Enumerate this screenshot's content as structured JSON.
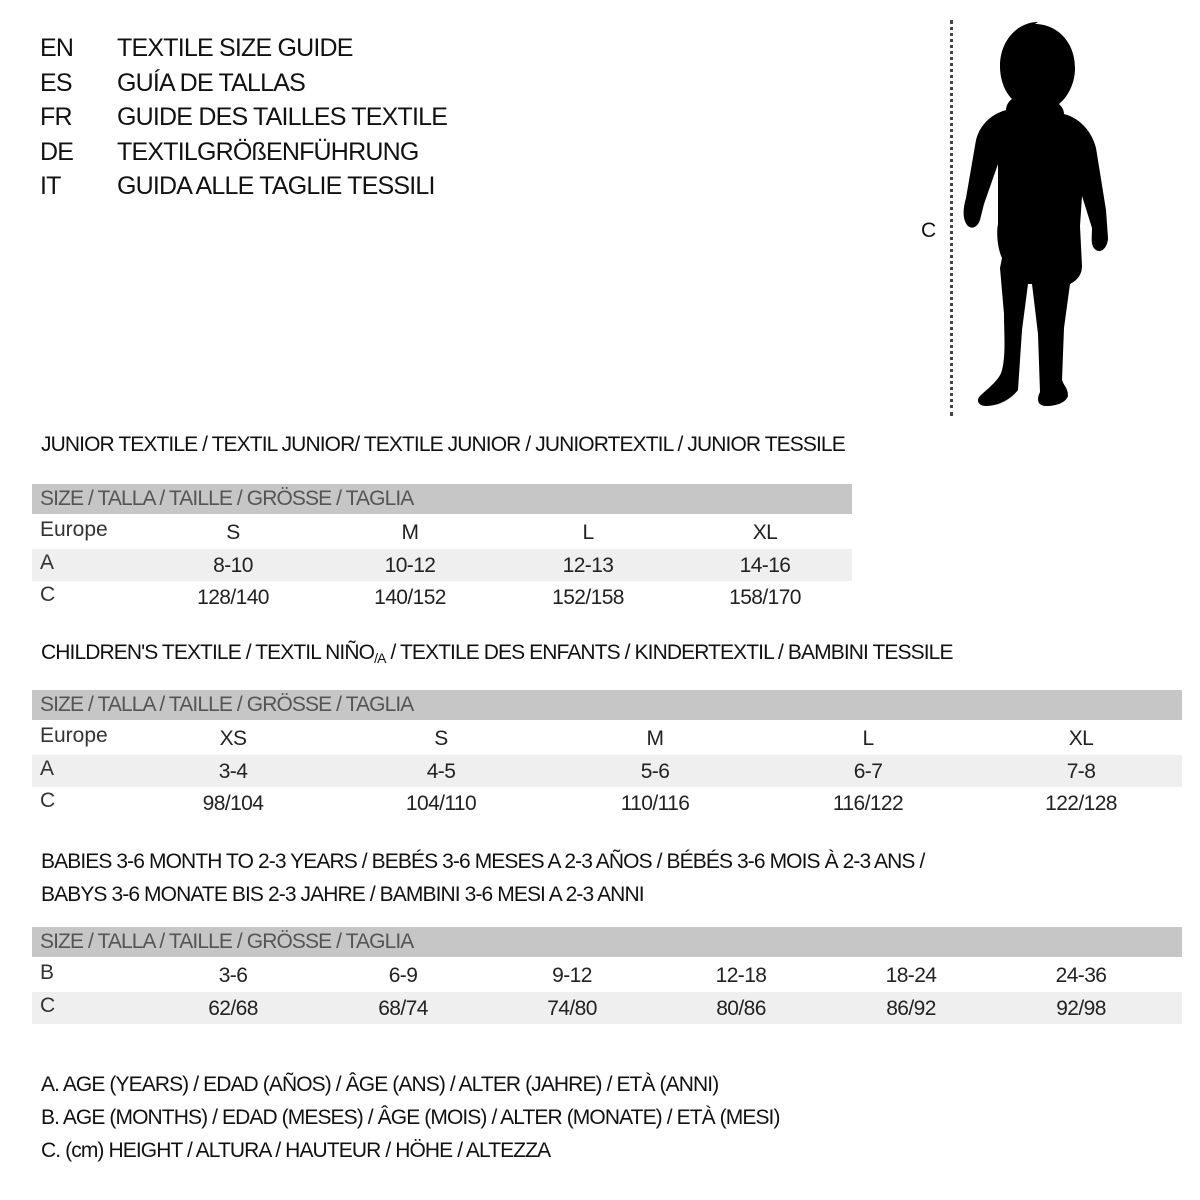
{
  "titles": [
    {
      "code": "EN",
      "text": "TEXTILE SIZE GUIDE"
    },
    {
      "code": "ES",
      "text": "GUÍA DE TALLAS"
    },
    {
      "code": "FR",
      "text": "GUIDE DES TAILLES TEXTILE"
    },
    {
      "code": "DE",
      "text": "TEXTILGRÖßENFÜHRUNG"
    },
    {
      "code": "IT",
      "text": "GUIDA ALLE TAGLIE TESSILI"
    }
  ],
  "figure": {
    "label": "C",
    "icon": "baby-silhouette-icon"
  },
  "junior": {
    "title": "JUNIOR TEXTILE / TEXTIL JUNIOR/ TEXTILE JUNIOR / JUNIORTEXTIL / JUNIOR TESSILE",
    "header": "SIZE / TALLA / TAILLE / GRÖSSE / TAGLIA",
    "rows": [
      {
        "label": "Europe",
        "cells": [
          "S",
          "M",
          "L",
          "XL"
        ]
      },
      {
        "label": "A",
        "cells": [
          "8-10",
          "10-12",
          "12-13",
          "14-16"
        ]
      },
      {
        "label": "C",
        "cells": [
          "128/140",
          "140/152",
          "152/158",
          "158/170"
        ]
      }
    ]
  },
  "children": {
    "title": "CHILDREN'S TEXTILE / TEXTIL NIÑO",
    "title_sub": "/A",
    "title_rest": " / TEXTILE DES ENFANTS / KINDERTEXTIL / BAMBINI TESSILE",
    "header": "SIZE / TALLA / TAILLE / GRÖSSE / TAGLIA",
    "rows": [
      {
        "label": "Europe",
        "cells": [
          "XS",
          "S",
          "M",
          "L",
          "XL"
        ]
      },
      {
        "label": "A",
        "cells": [
          "3-4",
          "4-5",
          "5-6",
          "6-7",
          "7-8"
        ]
      },
      {
        "label": "C",
        "cells": [
          "98/104",
          "104/110",
          "110/116",
          "116/122",
          "122/128"
        ]
      }
    ]
  },
  "babies": {
    "title_line1": "BABIES 3-6 MONTH TO 2-3 YEARS / BEBÉS 3-6 MESES A 2-3 AÑOS / BÉBÉS 3-6 MOIS À 2-3 ANS /",
    "title_line2": "BABYS 3-6 MONATE BIS 2-3 JAHRE / BAMBINI 3-6 MESI A 2-3 ANNI",
    "header": "SIZE / TALLA / TAILLE / GRÖSSE / TAGLIA",
    "rows": [
      {
        "label": "B",
        "cells": [
          "3-6",
          "6-9",
          "9-12",
          "12-18",
          "18-24",
          "24-36"
        ]
      },
      {
        "label": "C",
        "cells": [
          "62/68",
          "68/74",
          "74/80",
          "80/86",
          "86/92",
          "92/98"
        ]
      }
    ]
  },
  "legend": [
    "A. AGE (YEARS) / EDAD (AÑOS) / ÂGE (ANS) / ALTER (JAHRE) / ETÀ (ANNI)",
    "B. AGE (MONTHS) / EDAD (MESES) / ÂGE (MOIS) / ALTER (MONATE) / ETÀ (MESI)",
    "C. (cm) HEIGHT / ALTURA / HAUTEUR / HÖHE / ALTEZZA"
  ],
  "colors": {
    "header_bg": "#c6c6c6",
    "alt_row_bg": "#efefef"
  }
}
